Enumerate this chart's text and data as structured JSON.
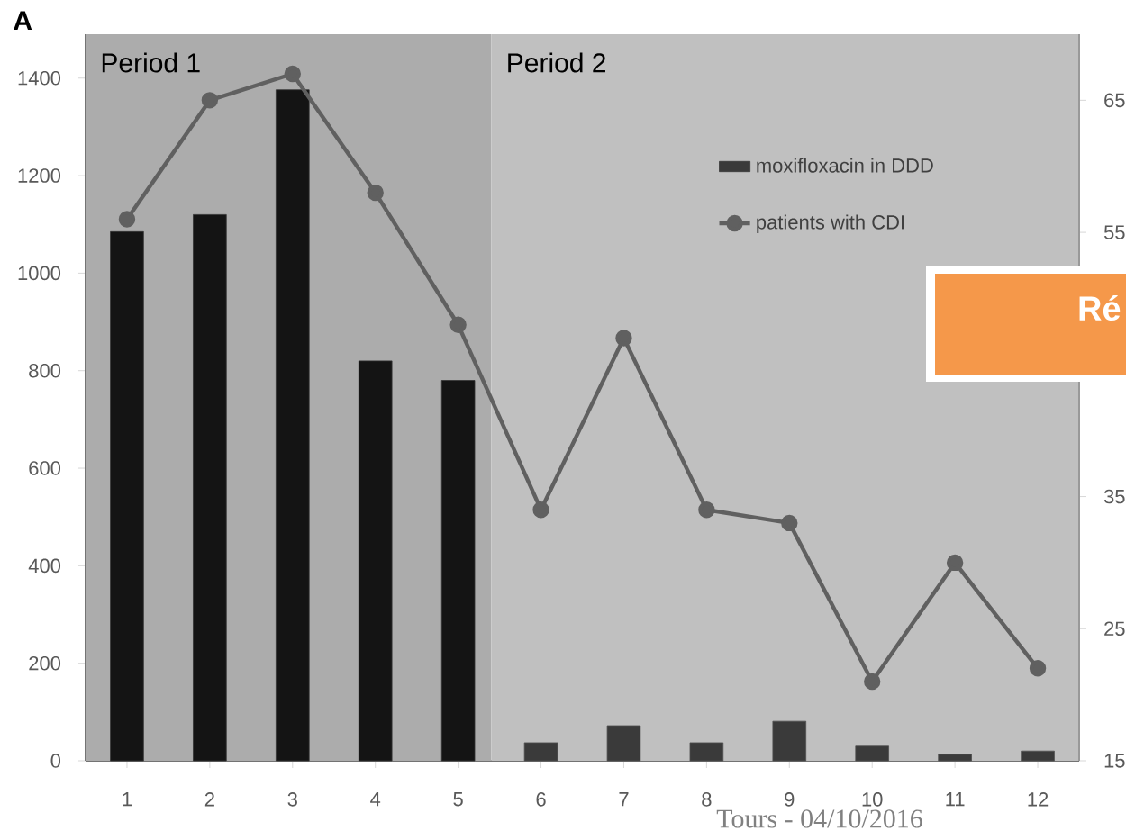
{
  "chart_data": {
    "type": "bar",
    "x": [
      1,
      2,
      3,
      4,
      5,
      6,
      7,
      8,
      9,
      10,
      11,
      12
    ],
    "xlim": [
      0.5,
      12.5
    ],
    "xticks": [
      1,
      2,
      3,
      4,
      5,
      6,
      7,
      8,
      9,
      10,
      11,
      12
    ],
    "ylim": [
      0,
      1490
    ],
    "yticks": [
      0,
      200,
      400,
      600,
      800,
      1000,
      1200,
      1400
    ],
    "y2lim": [
      15,
      70
    ],
    "y2ticks": [
      15,
      25,
      35,
      55,
      65
    ],
    "series": [
      {
        "name": "moxifloxacin in DDD",
        "color": "#3a3a3a",
        "colors": [
          "#141414",
          "#141414",
          "#141414",
          "#141414",
          "#141414",
          "#3a3a3a",
          "#3a3a3a",
          "#3a3a3a",
          "#3a3a3a",
          "#3a3a3a",
          "#3a3a3a",
          "#3a3a3a"
        ],
        "values": [
          1085,
          1120,
          1376,
          820,
          780,
          37,
          72,
          37,
          81,
          30,
          13,
          20
        ]
      },
      {
        "name": "patients with CDI",
        "type": "line",
        "axis": "y2",
        "color": "#606060",
        "values": [
          56,
          65,
          67,
          58,
          48,
          34,
          47,
          34,
          33,
          21,
          30,
          22
        ]
      }
    ],
    "marker": "circle",
    "line_style": "solid",
    "bands": [
      {
        "axis": "x",
        "from": 0.5,
        "to": 5.4,
        "label": "Period 1",
        "color": "#acacac"
      },
      {
        "axis": "x",
        "from": 5.4,
        "to": 12.5,
        "label": "Period 2",
        "color": "#c0c0c0"
      }
    ],
    "legend": "top right",
    "annotations": [
      "A",
      "Tours - 04/10/2016",
      "Ré"
    ]
  }
}
